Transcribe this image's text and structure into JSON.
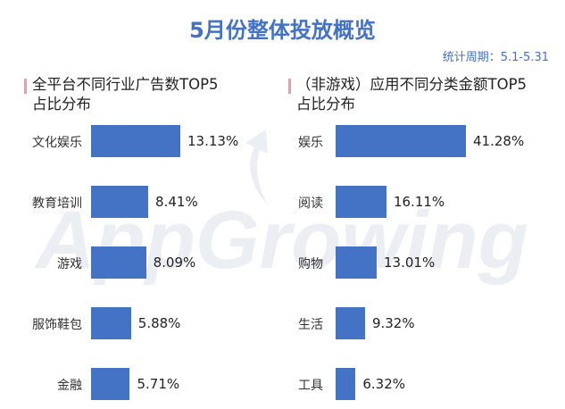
{
  "header": {
    "title": "5月份整体投放概览",
    "period": "统计周期：5.1-5.31"
  },
  "watermark": {
    "text": "AppGrowing"
  },
  "chart_data": [
    {
      "type": "bar",
      "orientation": "horizontal",
      "title_line1": "全平台不同行业广告数TOP5",
      "title_line2": "占比分布",
      "categories": [
        "文化娱乐",
        "教育培训",
        "游戏",
        "服饰鞋包",
        "金融"
      ],
      "values": [
        13.13,
        8.41,
        8.09,
        5.88,
        5.71
      ],
      "labels": [
        "13.13%",
        "8.41%",
        "8.09%",
        "5.88%",
        "5.71%"
      ],
      "color": "#4472c4",
      "xlim": [
        0,
        13.13
      ]
    },
    {
      "type": "bar",
      "orientation": "horizontal",
      "title_line1": "（非游戏）应用不同分类金额TOP5",
      "title_line2": "占比分布",
      "categories": [
        "娱乐",
        "阅读",
        "购物",
        "生活",
        "工具"
      ],
      "values": [
        41.28,
        16.11,
        13.01,
        9.32,
        6.32
      ],
      "labels": [
        "41.28%",
        "16.11%",
        "13.01%",
        "9.32%",
        "6.32%"
      ],
      "color": "#4472c4",
      "xlim": [
        0,
        41.28
      ]
    }
  ]
}
